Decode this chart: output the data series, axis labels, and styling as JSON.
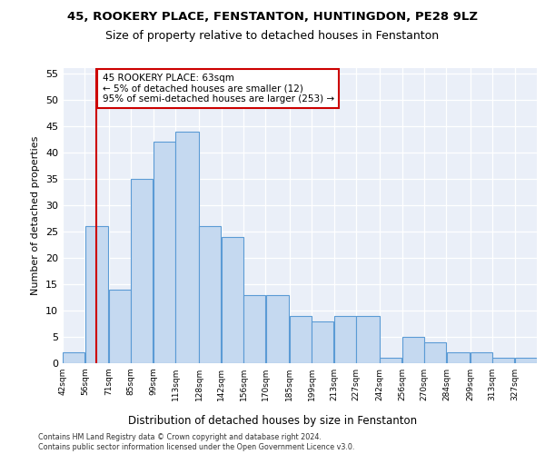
{
  "title1": "45, ROOKERY PLACE, FENSTANTON, HUNTINGDON, PE28 9LZ",
  "title2": "Size of property relative to detached houses in Fenstanton",
  "xlabel": "Distribution of detached houses by size in Fenstanton",
  "ylabel": "Number of detached properties",
  "bar_values": [
    2,
    26,
    14,
    35,
    42,
    44,
    26,
    24,
    13,
    13,
    9,
    8,
    9,
    9,
    1,
    5,
    4,
    2,
    2,
    1,
    1
  ],
  "bin_edges": [
    42,
    56,
    71,
    85,
    99,
    113,
    128,
    142,
    156,
    170,
    185,
    199,
    213,
    227,
    242,
    256,
    270,
    284,
    299,
    313,
    327,
    341
  ],
  "tick_labels": [
    "42sqm",
    "56sqm",
    "71sqm",
    "85sqm",
    "99sqm",
    "113sqm",
    "128sqm",
    "142sqm",
    "156sqm",
    "170sqm",
    "185sqm",
    "199sqm",
    "213sqm",
    "227sqm",
    "242sqm",
    "256sqm",
    "270sqm",
    "284sqm",
    "299sqm",
    "313sqm",
    "327sqm"
  ],
  "bar_color": "#c5d9f0",
  "bar_edge_color": "#5b9bd5",
  "bar_alpha": 1.0,
  "vline_x": 63,
  "vline_color": "#cc0000",
  "annotation_text": "45 ROOKERY PLACE: 63sqm\n← 5% of detached houses are smaller (12)\n95% of semi-detached houses are larger (253) →",
  "annotation_box_color": "white",
  "annotation_box_edge": "#cc0000",
  "ylim": [
    0,
    56
  ],
  "yticks": [
    0,
    5,
    10,
    15,
    20,
    25,
    30,
    35,
    40,
    45,
    50,
    55
  ],
  "footer": "Contains HM Land Registry data © Crown copyright and database right 2024.\nContains public sector information licensed under the Open Government Licence v3.0.",
  "plot_bg_color": "#eaeff8"
}
